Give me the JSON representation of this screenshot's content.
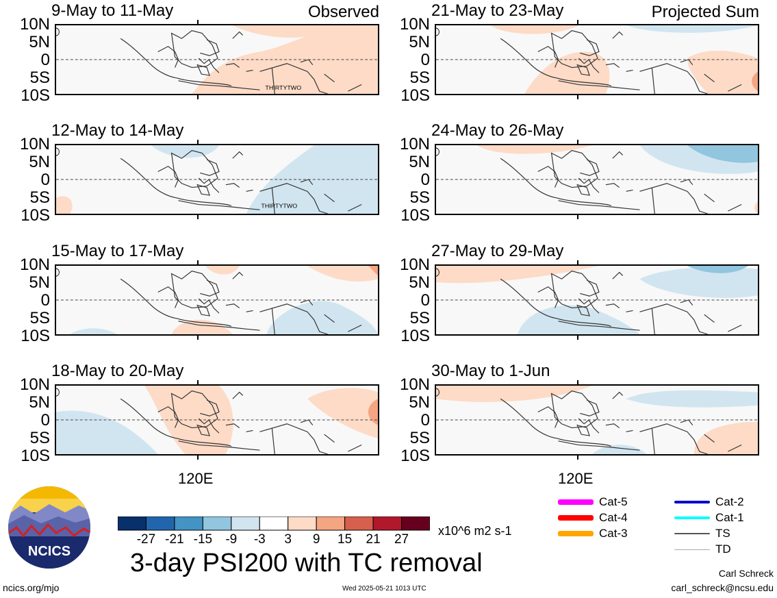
{
  "panels": [
    {
      "title": "9-May to 11-May",
      "corner": "Observed",
      "storm": "THIRTYTWO"
    },
    {
      "title": "12-May to 14-May",
      "corner": "",
      "storm": "THIRTYTWO"
    },
    {
      "title": "15-May to 17-May",
      "corner": "",
      "storm": ""
    },
    {
      "title": "18-May to 20-May",
      "corner": "",
      "storm": ""
    },
    {
      "title": "21-May to 23-May",
      "corner": "Projected Sum",
      "storm": ""
    },
    {
      "title": "24-May to 26-May",
      "corner": "",
      "storm": ""
    },
    {
      "title": "27-May to 29-May",
      "corner": "",
      "storm": ""
    },
    {
      "title": "30-May to 1-Jun",
      "corner": "",
      "storm": ""
    }
  ],
  "lat_labels": [
    "10N",
    "5N",
    "0",
    "5S",
    "10S"
  ],
  "lon_label": "120E",
  "colorbar": {
    "ticks": [
      "-27",
      "-21",
      "-15",
      "-9",
      "-3",
      "3",
      "9",
      "15",
      "21",
      "27"
    ],
    "colors": [
      "#08306b",
      "#2166ac",
      "#4393c3",
      "#92c5de",
      "#d1e5f0",
      "#ffffff",
      "#fddbc7",
      "#f4a582",
      "#d6604d",
      "#b2182b",
      "#67001f"
    ],
    "units": "x10^6 m2 s-1"
  },
  "title": "3-day PSI200 with TC removal",
  "logo_text": "NCICS",
  "footer": {
    "url": "ncics.org/mjo",
    "timestamp": "Wed 2025-05-21 1013 UTC",
    "author": "Carl Schreck",
    "email": "carl_schreck@ncsu.edu"
  },
  "legend": [
    {
      "label": "Cat-5",
      "color": "#ff00ff"
    },
    {
      "label": "Cat-4",
      "color": "#ff0000"
    },
    {
      "label": "Cat-3",
      "color": "#ffa500"
    },
    {
      "label": "Cat-2",
      "color": "#0000cd"
    },
    {
      "label": "Cat-1",
      "color": "#00ffff"
    },
    {
      "label": "TS",
      "color": "#555555"
    },
    {
      "label": "TD",
      "color": "#aaaaaa"
    }
  ],
  "chart_data": [
    {
      "type": "heatmap",
      "title": "9-May to 11-May",
      "subtitle": "Observed",
      "ylabels": [
        "10N",
        "5N",
        "0",
        "5S",
        "10S"
      ],
      "xlabel": "120E",
      "anomalies": [
        {
          "sign": "positive",
          "level": 1,
          "region": "north-east, centre and south-central"
        }
      ],
      "storm_label": "THIRTYTWO"
    },
    {
      "type": "heatmap",
      "title": "12-May to 14-May",
      "ylabels": [
        "10N",
        "5N",
        "0",
        "5S",
        "10S"
      ],
      "xlabel": "120E",
      "anomalies": [
        {
          "sign": "negative",
          "level": 1,
          "region": "north-central and east"
        },
        {
          "sign": "positive",
          "level": 1,
          "region": "south-west corner"
        }
      ],
      "storm_label": "THIRTYTWO"
    },
    {
      "type": "heatmap",
      "title": "15-May to 17-May",
      "ylabels": [
        "10N",
        "5N",
        "0",
        "5S",
        "10S"
      ],
      "xlabel": "120E",
      "anomalies": [
        {
          "sign": "positive",
          "level": 1,
          "region": "north-east"
        },
        {
          "sign": "negative",
          "level": 1,
          "region": "south-east"
        },
        {
          "sign": "positive",
          "level": 1,
          "region": "south-central"
        }
      ]
    },
    {
      "type": "heatmap",
      "title": "18-May to 20-May",
      "ylabels": [
        "10N",
        "5N",
        "0",
        "5S",
        "10S"
      ],
      "xlabel": "120E",
      "anomalies": [
        {
          "sign": "negative",
          "level": 1,
          "region": "west and south-west"
        },
        {
          "sign": "positive",
          "level": 1,
          "region": "central"
        },
        {
          "sign": "positive",
          "level": 2,
          "region": "east edge"
        }
      ]
    },
    {
      "type": "heatmap",
      "title": "21-May to 23-May",
      "subtitle": "Projected Sum",
      "ylabels": [
        "10N",
        "5N",
        "0",
        "5S",
        "10S"
      ],
      "xlabel": "120E",
      "anomalies": [
        {
          "sign": "positive",
          "level": 1,
          "region": "north-west and central-south"
        },
        {
          "sign": "negative",
          "level": 1,
          "region": "north-east"
        },
        {
          "sign": "positive",
          "level": 2,
          "region": "east edge"
        }
      ]
    },
    {
      "type": "heatmap",
      "title": "24-May to 26-May",
      "ylabels": [
        "10N",
        "5N",
        "0",
        "5S",
        "10S"
      ],
      "xlabel": "120E",
      "anomalies": [
        {
          "sign": "positive",
          "level": 1,
          "region": "north-west"
        },
        {
          "sign": "negative",
          "level": 1,
          "region": "north-east"
        },
        {
          "sign": "negative",
          "level": 2,
          "region": "north-east corner"
        }
      ]
    },
    {
      "type": "heatmap",
      "title": "27-May to 29-May",
      "ylabels": [
        "10N",
        "5N",
        "0",
        "5S",
        "10S"
      ],
      "xlabel": "120E",
      "anomalies": [
        {
          "sign": "positive",
          "level": 1,
          "region": "north-west"
        },
        {
          "sign": "negative",
          "level": 1,
          "region": "north-east and south-central"
        }
      ]
    },
    {
      "type": "heatmap",
      "title": "30-May to 1-Jun",
      "ylabels": [
        "10N",
        "5N",
        "0",
        "5S",
        "10S"
      ],
      "xlabel": "120E",
      "anomalies": [
        {
          "sign": "positive",
          "level": 1,
          "region": "north-west"
        },
        {
          "sign": "negative",
          "level": 1,
          "region": "north-east and south-central"
        },
        {
          "sign": "positive",
          "level": 1,
          "region": "south-east"
        }
      ]
    }
  ]
}
